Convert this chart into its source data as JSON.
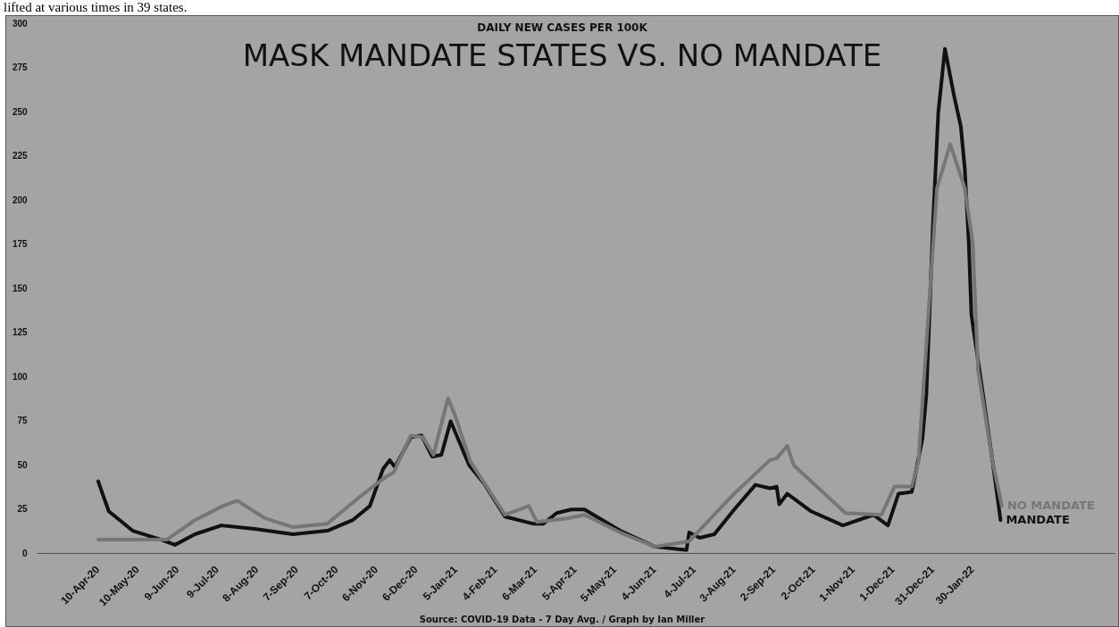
{
  "chart_data": {
    "type": "line",
    "title": "MASK MANDATE STATES VS. NO MANDATE",
    "subtitle": "DAILY NEW CASES PER 100K",
    "annotations": [
      "lifted at various times in 39 states.",
      "Source: COVID-19 Data - 7 Day Avg. / Graph by Ian Miller"
    ],
    "xlim": [
      "2020-02-24",
      "2022-05-17"
    ],
    "xticks": [
      {
        "value": "2020-04-10",
        "label": "10-Apr-20"
      },
      {
        "value": "2020-05-10",
        "label": "10-May-20"
      },
      {
        "value": "2020-06-09",
        "label": "9-Jun-20"
      },
      {
        "value": "2020-07-09",
        "label": "9-Jul-20"
      },
      {
        "value": "2020-08-08",
        "label": "8-Aug-20"
      },
      {
        "value": "2020-09-07",
        "label": "7-Sep-20"
      },
      {
        "value": "2020-10-07",
        "label": "7-Oct-20"
      },
      {
        "value": "2020-11-06",
        "label": "6-Nov-20"
      },
      {
        "value": "2020-12-06",
        "label": "6-Dec-20"
      },
      {
        "value": "2021-01-05",
        "label": "5-Jan-21"
      },
      {
        "value": "2021-02-04",
        "label": "4-Feb-21"
      },
      {
        "value": "2021-03-06",
        "label": "6-Mar-21"
      },
      {
        "value": "2021-04-05",
        "label": "5-Apr-21"
      },
      {
        "value": "2021-05-05",
        "label": "5-May-21"
      },
      {
        "value": "2021-06-04",
        "label": "4-Jun-21"
      },
      {
        "value": "2021-07-04",
        "label": "4-Jul-21"
      },
      {
        "value": "2021-08-03",
        "label": "3-Aug-21"
      },
      {
        "value": "2021-09-02",
        "label": "2-Sep-21"
      },
      {
        "value": "2021-10-02",
        "label": "2-Oct-21"
      },
      {
        "value": "2021-11-01",
        "label": "1-Nov-21"
      },
      {
        "value": "2021-12-01",
        "label": "1-Dec-21"
      },
      {
        "value": "2021-12-31",
        "label": "31-Dec-21"
      },
      {
        "value": "2022-01-30",
        "label": "30-Jan-22"
      }
    ],
    "ylim": [
      0,
      300
    ],
    "yticks": [
      0,
      25,
      50,
      75,
      100,
      125,
      150,
      175,
      200,
      225,
      250,
      275,
      300
    ],
    "series": [
      {
        "name": "NO MANDATE",
        "color": "#767676",
        "x": [
          "2020-04-10",
          "2020-06-01",
          "2020-06-22",
          "2020-07-13",
          "2020-07-24",
          "2020-08-14",
          "2020-09-04",
          "2020-09-30",
          "2020-10-24",
          "2020-11-14",
          "2020-11-19",
          "2020-12-02",
          "2020-12-11",
          "2020-12-19",
          "2020-12-30",
          "2021-01-04",
          "2021-01-16",
          "2021-02-11",
          "2021-03-01",
          "2021-03-07",
          "2021-03-30",
          "2021-04-12",
          "2021-05-09",
          "2021-06-04",
          "2021-06-30",
          "2021-08-03",
          "2021-08-30",
          "2021-09-04",
          "2021-09-12",
          "2021-09-17",
          "2021-10-26",
          "2021-11-22",
          "2021-12-02",
          "2021-12-15",
          "2021-12-20",
          "2022-01-03",
          "2022-01-13",
          "2022-01-24",
          "2022-01-30",
          "2022-02-03",
          "2022-02-14",
          "2022-02-21"
        ],
        "values": [
          8,
          8,
          19,
          27,
          30,
          20,
          15,
          17,
          32,
          44,
          46,
          67,
          66,
          56,
          88,
          79,
          52,
          22,
          27,
          18,
          20,
          22,
          12,
          4,
          7,
          34,
          53,
          54,
          61,
          50,
          23,
          22,
          38,
          38,
          52,
          207,
          232,
          207,
          176,
          104,
          52,
          27
        ]
      },
      {
        "name": "MANDATE",
        "color": "#111111",
        "x": [
          "2020-04-10",
          "2020-04-18",
          "2020-05-06",
          "2020-05-27",
          "2020-06-07",
          "2020-06-22",
          "2020-07-12",
          "2020-08-06",
          "2020-09-04",
          "2020-09-30",
          "2020-10-19",
          "2020-11-01",
          "2020-11-11",
          "2020-11-16",
          "2020-11-20",
          "2020-12-02",
          "2020-12-10",
          "2020-12-18",
          "2020-12-25",
          "2021-01-01",
          "2021-01-15",
          "2021-01-26",
          "2021-02-11",
          "2021-03-04",
          "2021-03-12",
          "2021-03-22",
          "2021-04-02",
          "2021-04-12",
          "2021-05-09",
          "2021-06-04",
          "2021-06-28",
          "2021-06-30",
          "2021-07-08",
          "2021-07-19",
          "2021-08-03",
          "2021-08-19",
          "2021-08-30",
          "2021-09-04",
          "2021-09-06",
          "2021-09-12",
          "2021-09-30",
          "2021-10-24",
          "2021-11-16",
          "2021-11-27",
          "2021-12-05",
          "2021-12-15",
          "2021-12-23",
          "2021-12-26",
          "2021-12-31",
          "2022-01-04",
          "2022-01-09",
          "2022-01-16",
          "2022-01-21",
          "2022-01-24",
          "2022-01-27",
          "2022-01-29",
          "2022-02-06",
          "2022-02-14",
          "2022-02-20"
        ],
        "values": [
          41,
          24,
          13,
          8,
          5,
          11,
          16,
          14,
          11,
          13,
          19,
          27,
          48,
          53,
          49,
          66,
          67,
          55,
          56,
          75,
          50,
          40,
          21,
          17,
          17,
          23,
          25,
          25,
          13,
          4,
          2,
          12,
          9,
          11,
          25,
          39,
          37,
          38,
          28,
          34,
          24,
          16,
          22,
          16,
          34,
          35,
          65,
          90,
          187,
          250,
          286,
          259,
          242,
          218,
          176,
          135,
          94,
          52,
          19
        ]
      }
    ]
  }
}
